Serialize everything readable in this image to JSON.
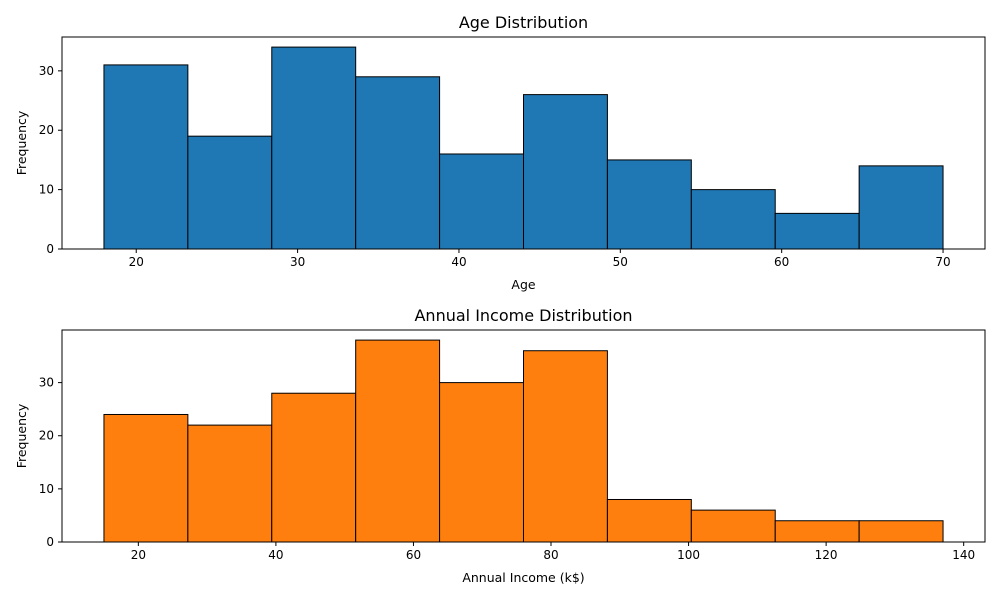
{
  "chart_data": [
    {
      "type": "bar",
      "subtype": "histogram",
      "title": "Age Distribution",
      "xlabel": "Age",
      "ylabel": "Frequency",
      "color": "#1f77b4",
      "edgecolor": "#000000",
      "bin_edges": [
        18,
        23.2,
        28.4,
        33.6,
        38.8,
        44,
        49.2,
        54.4,
        59.6,
        64.8,
        70
      ],
      "values": [
        31,
        19,
        34,
        29,
        16,
        26,
        15,
        10,
        6,
        14
      ],
      "xlim": [
        15.4,
        72.6
      ],
      "ylim": [
        0,
        35.7
      ],
      "xticks": [
        20,
        30,
        40,
        50,
        60,
        70
      ],
      "yticks": [
        0,
        10,
        20,
        30
      ],
      "grid": false
    },
    {
      "type": "bar",
      "subtype": "histogram",
      "title": "Annual Income Distribution",
      "xlabel": "Annual Income (k$)",
      "ylabel": "Frequency",
      "color": "#ff7f0e",
      "edgecolor": "#000000",
      "bin_edges": [
        15,
        27.2,
        39.4,
        51.6,
        63.8,
        76,
        88.2,
        100.4,
        112.6,
        124.8,
        137
      ],
      "values": [
        24,
        22,
        28,
        38,
        30,
        36,
        8,
        6,
        4,
        4
      ],
      "xlim": [
        8.9,
        143.1
      ],
      "ylim": [
        0,
        39.9
      ],
      "xticks": [
        20,
        40,
        60,
        80,
        100,
        120,
        140
      ],
      "yticks": [
        0,
        10,
        20,
        30
      ],
      "grid": false
    }
  ]
}
